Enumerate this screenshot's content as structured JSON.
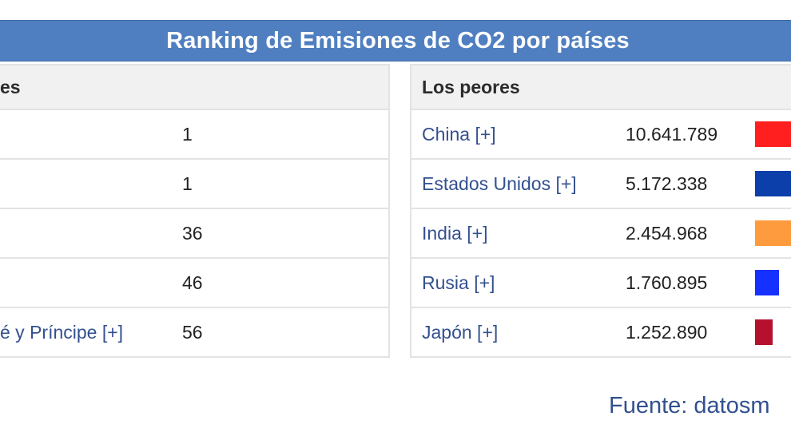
{
  "title": "Ranking de Emisiones de CO2 por países",
  "left_panel": {
    "heading": "es",
    "rows": [
      {
        "name": "",
        "value": "1"
      },
      {
        "name": "",
        "value": "1"
      },
      {
        "name": "",
        "value": "36"
      },
      {
        "name": "",
        "value": "46"
      },
      {
        "name": "é y Príncipe [+]",
        "value": "56"
      }
    ]
  },
  "right_panel": {
    "heading": "Los peores",
    "rows": [
      {
        "name": "China [+]",
        "value": "10.641.789",
        "color": "#ff1f1f"
      },
      {
        "name": "Estados Unidos [+]",
        "value": "5.172.338",
        "color": "#0d3faa"
      },
      {
        "name": "India [+]",
        "value": "2.454.968",
        "color": "#ff9b3f"
      },
      {
        "name": "Rusia [+]",
        "value": "1.760.895",
        "color": "#1630ff"
      },
      {
        "name": "Japón [+]",
        "value": "1.252.890",
        "color": "#b5102e"
      }
    ]
  },
  "source": "Fuente: datosm"
}
